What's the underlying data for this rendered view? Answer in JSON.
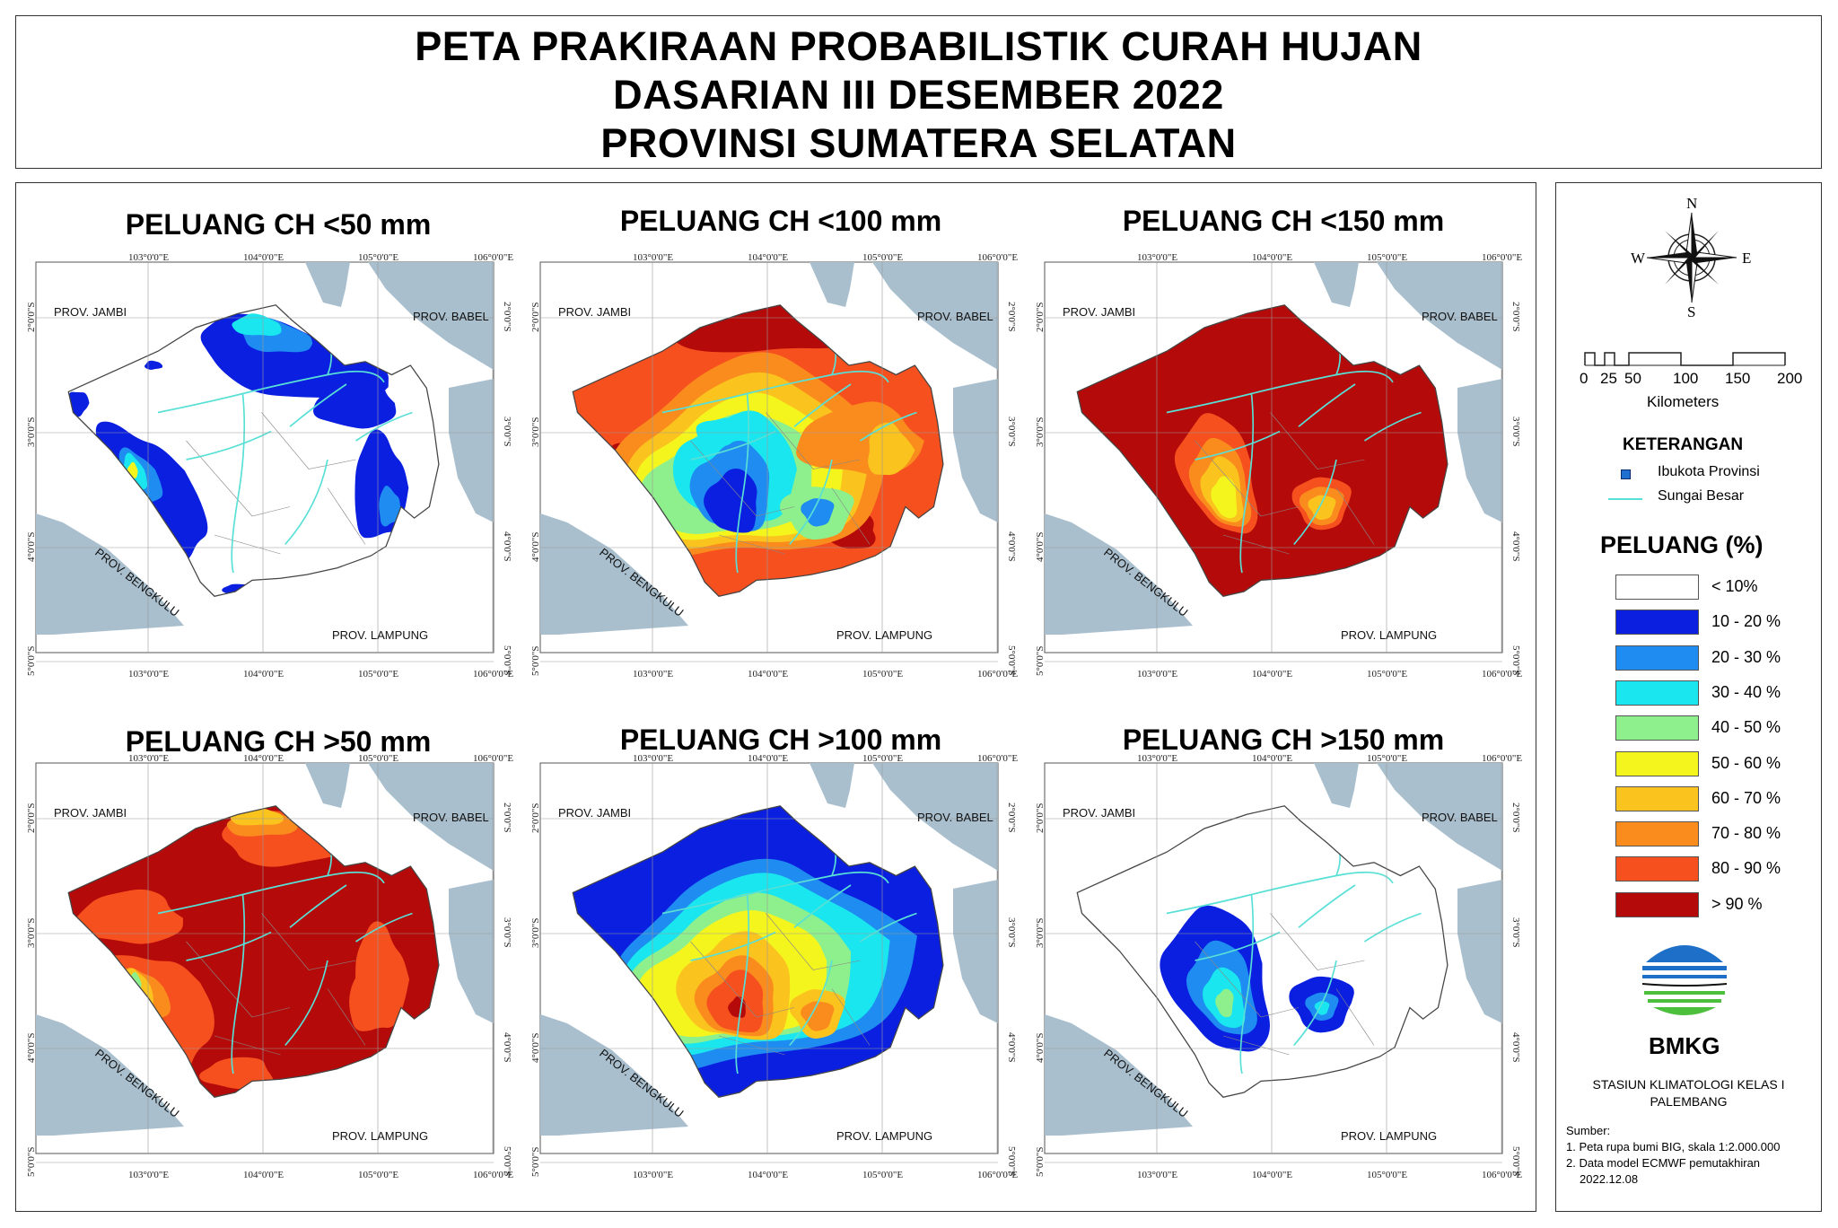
{
  "title": {
    "line1": "PETA PRAKIRAAN PROBABILISTIK CURAH HUJAN",
    "line2": "DASARIAN III DESEMBER 2022",
    "line3": "PROVINSI SUMATERA SELATAN"
  },
  "panels": [
    {
      "title": "PELUANG CH <50 mm"
    },
    {
      "title": "PELUANG CH <100 mm"
    },
    {
      "title": "PELUANG CH <150 mm"
    },
    {
      "title": "PELUANG CH >50 mm"
    },
    {
      "title": "PELUANG CH >100 mm"
    },
    {
      "title": "PELUANG CH >150 mm"
    }
  ],
  "map_labels": {
    "jambi": "PROV. JAMBI",
    "babel": "PROV. BABEL",
    "bengkulu": "PROV. BENGKULU",
    "lampung": "PROV. LAMPUNG",
    "lon_ticks": [
      "103°0'0\"E",
      "104°0'0\"E",
      "105°0'0\"E",
      "106°0'0\"E"
    ],
    "lat_ticks": [
      "2°0'0\"S",
      "3°0'0\"S",
      "4°0'0\"S",
      "5°0'0\"S"
    ]
  },
  "compass": {
    "n": "N",
    "s": "S",
    "e": "E",
    "w": "W"
  },
  "scale": {
    "ticks": [
      "0",
      "25",
      "50",
      "100",
      "150",
      "200"
    ],
    "unit": "Kilometers"
  },
  "legend": {
    "keterangan": "KETERANGAN",
    "ibukota": "Ibukota Provinsi",
    "sungai": "Sungai Besar",
    "peluang_title": "PELUANG (%)",
    "classes": [
      {
        "label": "< 10%",
        "color": "#ffffff"
      },
      {
        "label": "10 - 20 %",
        "color": "#0a1fe0"
      },
      {
        "label": "20 - 30 %",
        "color": "#1e8cf0"
      },
      {
        "label": "30 - 40 %",
        "color": "#19e6ee"
      },
      {
        "label": "40 - 50 %",
        "color": "#8ef08c"
      },
      {
        "label": "50 - 60 %",
        "color": "#f5f51e"
      },
      {
        "label": "60 - 70 %",
        "color": "#fac31e"
      },
      {
        "label": "70 - 80 %",
        "color": "#fa8c1e"
      },
      {
        "label": "80 - 90 %",
        "color": "#f5501e"
      },
      {
        "label": "> 90 %",
        "color": "#b40a0a"
      }
    ]
  },
  "org": {
    "name": "BMKG",
    "station_line1": "STASIUN KLIMATOLOGI KELAS I",
    "station_line2": "PALEMBANG"
  },
  "sources": {
    "title": "Sumber:",
    "item1": "1. Peta rupa bumi BIG, skala 1:2.000.000",
    "item2": "2. Data model ECMWF pemutakhiran",
    "item3": "2022.12.08"
  },
  "colors": {
    "sea": "#a9bfce",
    "river": "#58e0d6",
    "grid": "#9a9a9a"
  }
}
